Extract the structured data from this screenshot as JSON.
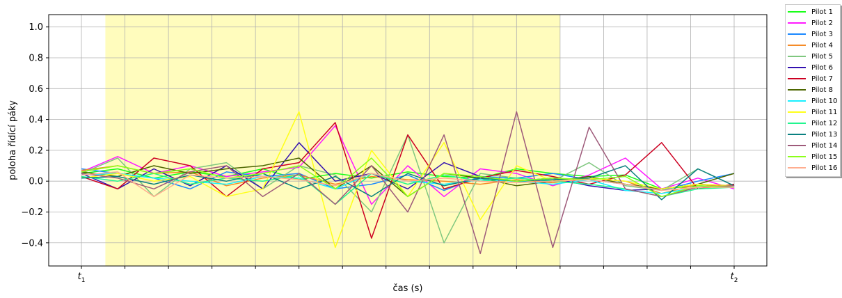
{
  "chart_data": {
    "type": "line",
    "xlabel": "čas (s)",
    "ylabel": "poloha řídící páky",
    "xlim": [
      0,
      180
    ],
    "ylim": [
      -0.55,
      1.08
    ],
    "y_ticks": [
      "−0.4",
      "−0.2",
      "0.0",
      "0.2",
      "0.4",
      "0.6",
      "0.8",
      "1.0"
    ],
    "y_tick_values": [
      -0.4,
      -0.2,
      0.0,
      0.2,
      0.4,
      0.6,
      0.8,
      1.0
    ],
    "x_tick_labels": [
      {
        "x": 0,
        "base": "t",
        "sub": "1"
      },
      {
        "x": 180,
        "base": "t",
        "sub": "2"
      }
    ],
    "x_minor_ticks": [
      12,
      24,
      36,
      48,
      60,
      72,
      84,
      96,
      108,
      120,
      132,
      144,
      156,
      168
    ],
    "grid": true,
    "legend_placement": "outside-top-right",
    "highlight_span": {
      "x_start": 6.6,
      "x_end": 132,
      "color": "#fffcbd"
    },
    "series": [
      {
        "name": "Pilot 1",
        "color": "#19ff19",
        "x": [
          0,
          10,
          20,
          30,
          40,
          50,
          60,
          70,
          80,
          90,
          100,
          110,
          120,
          130,
          140,
          150,
          160,
          170,
          180
        ],
        "values": [
          0.05,
          0.08,
          0.02,
          0.06,
          0.03,
          0.08,
          0.01,
          0.05,
          0.02,
          0.06,
          0.03,
          0.02,
          0.08,
          0.05,
          0.03,
          0.04,
          -0.05,
          -0.03,
          -0.04
        ]
      },
      {
        "name": "Pilot 2",
        "color": "#ff19ff",
        "x": [
          0,
          10,
          20,
          30,
          40,
          50,
          60,
          70,
          80,
          90,
          100,
          110,
          120,
          130,
          140,
          150,
          160,
          170,
          180
        ],
        "values": [
          0.06,
          0.16,
          0.05,
          0.1,
          0.03,
          0.06,
          0.09,
          0.36,
          -0.15,
          0.1,
          -0.1,
          0.08,
          0.05,
          -0.03,
          0.04,
          0.15,
          -0.05,
          0.02,
          -0.05
        ]
      },
      {
        "name": "Pilot 3",
        "color": "#1a88ff",
        "x": [
          0,
          10,
          20,
          30,
          40,
          50,
          60,
          70,
          80,
          90,
          100,
          110,
          120,
          130,
          140,
          150,
          160,
          170,
          180
        ],
        "values": [
          0.08,
          0.05,
          0.02,
          -0.05,
          0.06,
          0.03,
          0.05,
          -0.05,
          -0.02,
          0.04,
          -0.06,
          0.03,
          0.02,
          0.05,
          0.01,
          -0.02,
          -0.06,
          0.0,
          0.05
        ]
      },
      {
        "name": "Pilot 4",
        "color": "#f58b27",
        "x": [
          0,
          10,
          20,
          30,
          40,
          50,
          60,
          70,
          80,
          90,
          100,
          110,
          120,
          130,
          140,
          150,
          160,
          170,
          180
        ],
        "values": [
          0.07,
          0.1,
          0.05,
          0.06,
          -0.03,
          0.02,
          0.04,
          -0.02,
          0.03,
          0.01,
          0.0,
          -0.02,
          0.01,
          -0.01,
          0.02,
          0.0,
          -0.08,
          -0.02,
          -0.04
        ]
      },
      {
        "name": "Pilot 5",
        "color": "#7fc77f",
        "x": [
          0,
          10,
          20,
          30,
          40,
          50,
          60,
          70,
          80,
          90,
          100,
          110,
          120,
          130,
          140,
          150,
          160,
          170,
          180
        ],
        "values": [
          0.05,
          0.15,
          -0.1,
          0.08,
          0.12,
          -0.05,
          0.1,
          0.04,
          -0.2,
          0.3,
          -0.4,
          0.05,
          0.02,
          0.0,
          0.12,
          -0.03,
          -0.06,
          0.08,
          -0.03
        ]
      },
      {
        "name": "Pilot 6",
        "color": "#3311b0",
        "x": [
          0,
          10,
          20,
          30,
          40,
          50,
          60,
          70,
          80,
          90,
          100,
          110,
          120,
          130,
          140,
          150,
          160,
          170,
          180
        ],
        "values": [
          0.05,
          -0.05,
          0.08,
          -0.03,
          0.1,
          -0.05,
          0.25,
          0.0,
          0.05,
          -0.05,
          0.12,
          0.03,
          0.0,
          0.02,
          -0.03,
          -0.06,
          -0.05,
          -0.02,
          -0.03
        ]
      },
      {
        "name": "Pilot 7",
        "color": "#cc0022",
        "x": [
          0,
          10,
          20,
          30,
          40,
          50,
          60,
          70,
          80,
          90,
          100,
          110,
          120,
          130,
          140,
          150,
          160,
          170,
          180
        ],
        "values": [
          0.03,
          -0.05,
          0.15,
          0.1,
          -0.1,
          0.08,
          0.12,
          0.38,
          -0.37,
          0.3,
          -0.05,
          0.02,
          0.07,
          0.03,
          -0.02,
          0.04,
          0.25,
          -0.05,
          -0.02
        ]
      },
      {
        "name": "Pilot 8",
        "color": "#4d6600",
        "x": [
          0,
          10,
          20,
          30,
          40,
          50,
          60,
          70,
          80,
          90,
          100,
          110,
          120,
          130,
          140,
          150,
          160,
          170,
          180
        ],
        "values": [
          0.06,
          0.03,
          0.1,
          0.05,
          0.08,
          0.1,
          0.15,
          -0.05,
          0.1,
          -0.1,
          0.05,
          0.02,
          -0.03,
          0.0,
          0.03,
          -0.02,
          -0.05,
          -0.02,
          0.05
        ]
      },
      {
        "name": "Pilot 10",
        "color": "#19f0ff",
        "x": [
          0,
          10,
          20,
          30,
          40,
          50,
          60,
          70,
          80,
          90,
          100,
          110,
          120,
          130,
          140,
          150,
          160,
          170,
          180
        ],
        "values": [
          0.04,
          0.05,
          0.02,
          0.0,
          -0.02,
          0.03,
          0.02,
          -0.05,
          0.05,
          0.0,
          -0.02,
          0.01,
          0.0,
          -0.02,
          0.01,
          -0.06,
          -0.08,
          -0.04,
          -0.03
        ]
      },
      {
        "name": "Pilot 11",
        "color": "#ffff19",
        "x": [
          0,
          10,
          20,
          30,
          40,
          50,
          60,
          70,
          80,
          90,
          100,
          110,
          120,
          130,
          140,
          150,
          160,
          170,
          180
        ],
        "values": [
          0.02,
          0.05,
          0.0,
          0.03,
          -0.1,
          -0.05,
          0.45,
          -0.43,
          0.2,
          -0.1,
          0.25,
          -0.25,
          0.1,
          0.0,
          0.02,
          0.0,
          -0.05,
          -0.02,
          -0.03
        ]
      },
      {
        "name": "Pilot 12",
        "color": "#21f58f",
        "x": [
          0,
          10,
          20,
          30,
          40,
          50,
          60,
          70,
          80,
          90,
          100,
          110,
          120,
          130,
          140,
          150,
          160,
          170,
          180
        ],
        "values": [
          0.03,
          0.0,
          0.05,
          -0.02,
          0.02,
          0.0,
          0.04,
          -0.15,
          0.05,
          -0.02,
          0.04,
          0.0,
          0.02,
          0.0,
          -0.02,
          -0.05,
          -0.1,
          -0.05,
          -0.04
        ]
      },
      {
        "name": "Pilot 13",
        "color": "#0a8080",
        "x": [
          0,
          10,
          20,
          30,
          40,
          50,
          60,
          70,
          80,
          90,
          100,
          110,
          120,
          130,
          140,
          150,
          160,
          170,
          180
        ],
        "values": [
          0.02,
          0.03,
          -0.02,
          0.04,
          0.0,
          0.05,
          -0.05,
          0.03,
          -0.1,
          0.05,
          -0.03,
          0.02,
          0.0,
          0.01,
          0.02,
          0.1,
          -0.12,
          0.08,
          -0.03
        ]
      },
      {
        "name": "Pilot 14",
        "color": "#9e5a7a",
        "x": [
          0,
          10,
          20,
          30,
          40,
          50,
          60,
          70,
          80,
          90,
          100,
          110,
          120,
          130,
          140,
          150,
          160,
          170,
          180
        ],
        "values": [
          0.05,
          0.02,
          -0.05,
          0.06,
          0.1,
          -0.1,
          0.05,
          -0.15,
          0.1,
          -0.2,
          0.3,
          -0.47,
          0.45,
          -0.43,
          0.35,
          -0.05,
          -0.1,
          -0.04,
          -0.03
        ]
      },
      {
        "name": "Pilot 15",
        "color": "#8bff19",
        "x": [
          0,
          10,
          20,
          30,
          40,
          50,
          60,
          70,
          80,
          90,
          100,
          110,
          120,
          130,
          140,
          150,
          160,
          170,
          180
        ],
        "values": [
          0.06,
          0.1,
          0.05,
          0.08,
          0.02,
          0.05,
          0.1,
          -0.05,
          0.15,
          -0.1,
          0.05,
          0.03,
          0.0,
          0.02,
          0.01,
          0.03,
          -0.1,
          -0.03,
          -0.04
        ]
      },
      {
        "name": "Pilot 16",
        "color": "#ffad8f",
        "x": [
          0,
          10,
          20,
          30,
          40,
          50,
          60,
          70,
          80,
          90,
          100,
          110,
          120,
          130,
          140,
          150,
          160,
          170,
          180
        ],
        "values": [
          0.04,
          0.06,
          -0.1,
          0.04,
          0.02,
          0.03,
          0.01,
          -0.03,
          0.05,
          0.0,
          0.02,
          0.0,
          -0.01,
          0.0,
          0.01,
          -0.02,
          -0.06,
          -0.04,
          -0.04
        ]
      }
    ]
  }
}
